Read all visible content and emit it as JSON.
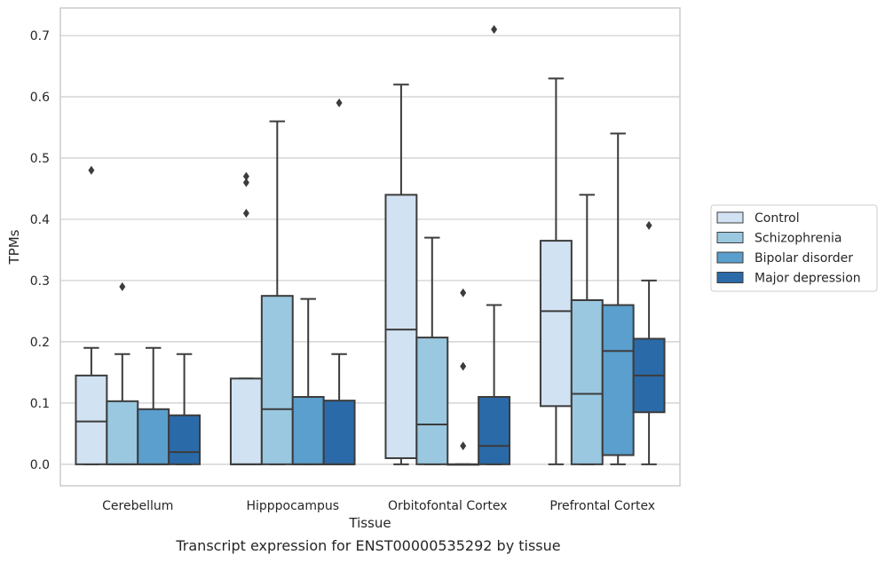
{
  "chart_data": {
    "type": "boxplot",
    "xlabel": "Tissue",
    "ylabel": "TPMs",
    "caption": "Transcript expression for ENST00000535292 by tissue",
    "ylim": [
      -0.035,
      0.745
    ],
    "yticks": [
      "0.0",
      "0.1",
      "0.2",
      "0.3",
      "0.4",
      "0.5",
      "0.6",
      "0.7"
    ],
    "grid": true,
    "legend_position": "right",
    "categories": [
      "Cerebellum",
      "Hipppocampus",
      "Orbitofontal Cortex",
      "Prefrontal Cortex"
    ],
    "series": [
      {
        "name": "Control",
        "color": "#d1e2f2",
        "boxes": [
          {
            "whislo": 0.0,
            "q1": 0.0,
            "med": 0.07,
            "q3": 0.145,
            "whishi": 0.19,
            "fliers": [
              0.48
            ]
          },
          {
            "whislo": 0.0,
            "q1": 0.0,
            "med": 0.0,
            "q3": 0.14,
            "whishi": 0.14,
            "fliers": [
              0.41,
              0.46,
              0.47
            ]
          },
          {
            "whislo": 0.0,
            "q1": 0.01,
            "med": 0.22,
            "q3": 0.44,
            "whishi": 0.62,
            "fliers": []
          },
          {
            "whislo": 0.0,
            "q1": 0.095,
            "med": 0.25,
            "q3": 0.365,
            "whishi": 0.63,
            "fliers": []
          }
        ]
      },
      {
        "name": "Schizophrenia",
        "color": "#9ac8e0",
        "boxes": [
          {
            "whislo": 0.0,
            "q1": 0.0,
            "med": 0.0,
            "q3": 0.103,
            "whishi": 0.18,
            "fliers": [
              0.29
            ]
          },
          {
            "whislo": 0.0,
            "q1": 0.0,
            "med": 0.09,
            "q3": 0.275,
            "whishi": 0.56,
            "fliers": []
          },
          {
            "whislo": 0.0,
            "q1": 0.0,
            "med": 0.065,
            "q3": 0.207,
            "whishi": 0.37,
            "fliers": []
          },
          {
            "whislo": 0.0,
            "q1": 0.0,
            "med": 0.115,
            "q3": 0.268,
            "whishi": 0.44,
            "fliers": []
          }
        ]
      },
      {
        "name": "Bipolar disorder",
        "color": "#5a9fcd",
        "boxes": [
          {
            "whislo": 0.0,
            "q1": 0.0,
            "med": 0.0,
            "q3": 0.09,
            "whishi": 0.19,
            "fliers": []
          },
          {
            "whislo": 0.0,
            "q1": 0.0,
            "med": 0.0,
            "q3": 0.11,
            "whishi": 0.27,
            "fliers": []
          },
          {
            "whislo": 0.0,
            "q1": 0.0,
            "med": 0.0,
            "q3": 0.0,
            "whishi": 0.0,
            "fliers": [
              0.03,
              0.16,
              0.28
            ]
          },
          {
            "whislo": 0.0,
            "q1": 0.015,
            "med": 0.185,
            "q3": 0.26,
            "whishi": 0.54,
            "fliers": []
          }
        ]
      },
      {
        "name": "Major depression",
        "color": "#2b6aa8",
        "boxes": [
          {
            "whislo": 0.0,
            "q1": 0.0,
            "med": 0.02,
            "q3": 0.08,
            "whishi": 0.18,
            "fliers": []
          },
          {
            "whislo": 0.0,
            "q1": 0.0,
            "med": 0.0,
            "q3": 0.104,
            "whishi": 0.18,
            "fliers": [
              0.59
            ]
          },
          {
            "whislo": 0.0,
            "q1": 0.0,
            "med": 0.03,
            "q3": 0.11,
            "whishi": 0.26,
            "fliers": [
              0.71
            ]
          },
          {
            "whislo": 0.0,
            "q1": 0.085,
            "med": 0.145,
            "q3": 0.205,
            "whishi": 0.3,
            "fliers": [
              0.39
            ]
          }
        ]
      }
    ]
  }
}
